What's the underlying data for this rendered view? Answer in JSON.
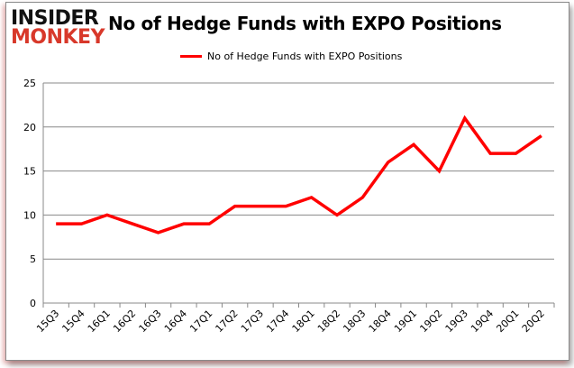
{
  "logo": {
    "line1": "INSIDER",
    "line2": "MONKEY"
  },
  "chart_data": {
    "type": "line",
    "title": "No of Hedge Funds with EXPO Positions",
    "xlabel": "",
    "ylabel": "",
    "ylim": [
      0,
      25
    ],
    "yticks": [
      0,
      5,
      10,
      15,
      20,
      25
    ],
    "grid": true,
    "legend_position": "top-center",
    "categories": [
      "15Q3",
      "15Q4",
      "16Q1",
      "16Q2",
      "16Q3",
      "16Q4",
      "17Q1",
      "17Q2",
      "17Q3",
      "17Q4",
      "18Q1",
      "18Q2",
      "18Q3",
      "18Q4",
      "19Q1",
      "19Q2",
      "19Q3",
      "19Q4",
      "20Q1",
      "20Q2"
    ],
    "series": [
      {
        "name": "No of Hedge Funds with EXPO Positions",
        "color": "#ff0000",
        "values": [
          9,
          9,
          10,
          9,
          8,
          9,
          9,
          11,
          11,
          11,
          12,
          10,
          12,
          16,
          18,
          15,
          21,
          17,
          17,
          19
        ]
      }
    ]
  }
}
